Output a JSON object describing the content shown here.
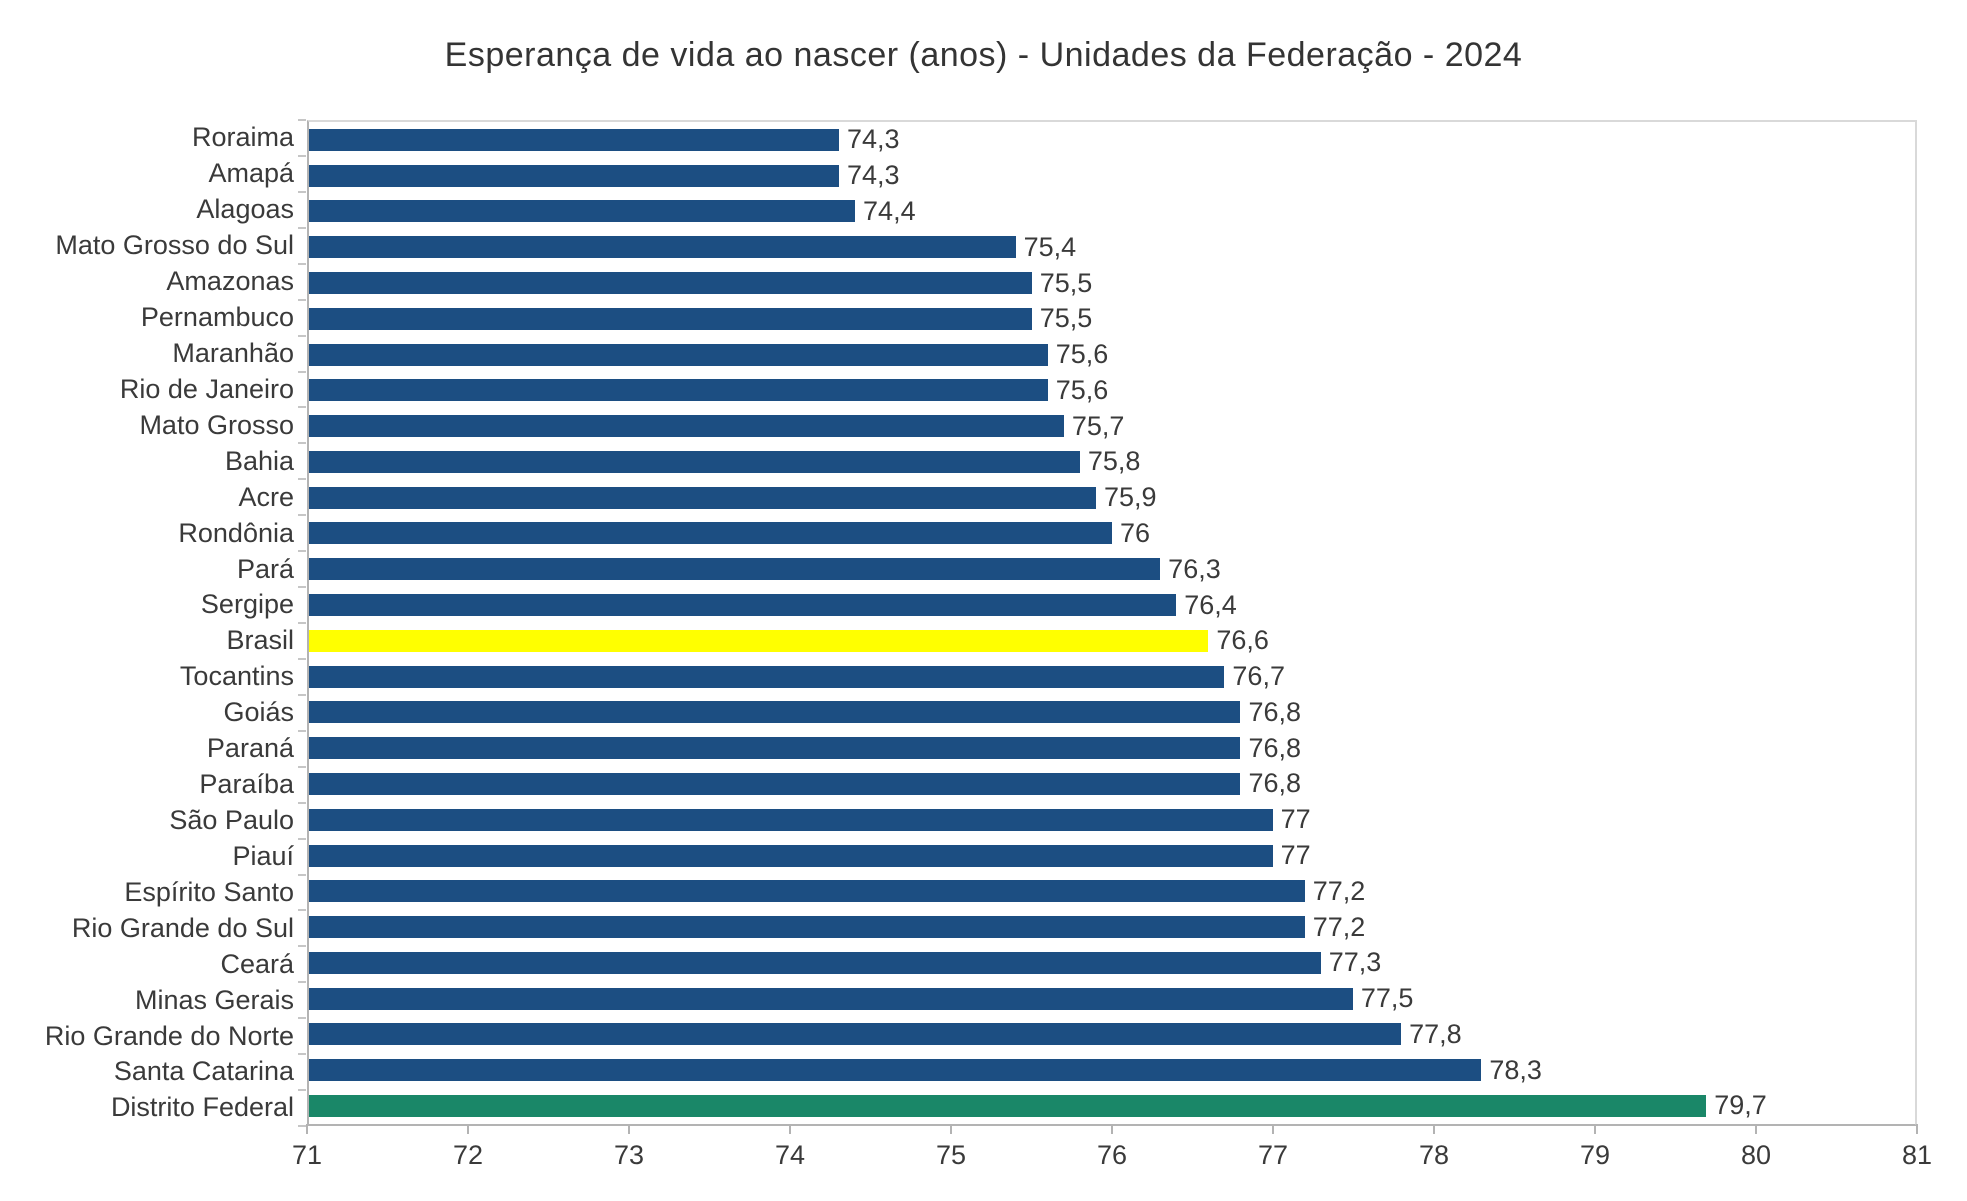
{
  "title": "Esperança de vida ao nascer (anos) - Unidades da Federação - 2024",
  "colors": {
    "bar_default": "#1C4E82",
    "bar_highlight_brasil": "#FFFF00",
    "bar_highlight_distrito_federal": "#1A8768",
    "axis_line": "#B3B3B3",
    "plot_border": "#D9D9D9",
    "text": "#3A3A3A"
  },
  "chart_data": {
    "type": "bar",
    "orientation": "horizontal",
    "title": "Esperança de vida ao nascer (anos) - Unidades da Federação - 2024",
    "xlabel": "",
    "ylabel": "",
    "xlim": [
      71,
      81
    ],
    "x_ticks": [
      71,
      72,
      73,
      74,
      75,
      76,
      77,
      78,
      79,
      80,
      81
    ],
    "grid": false,
    "legend": "none",
    "decimal_separator": ",",
    "categories": [
      "Roraima",
      "Amapá",
      "Alagoas",
      "Mato Grosso do Sul",
      "Amazonas",
      "Pernambuco",
      "Maranhão",
      "Rio de Janeiro",
      "Mato Grosso",
      "Bahia",
      "Acre",
      "Rondônia",
      "Pará",
      "Sergipe",
      "Brasil",
      "Tocantins",
      "Goiás",
      "Paraná",
      "Paraíba",
      "São Paulo",
      "Piauí",
      "Espírito Santo",
      "Rio Grande do Sul",
      "Ceará",
      "Minas Gerais",
      "Rio Grande do Norte",
      "Santa Catarina",
      "Distrito Federal"
    ],
    "values": [
      74.3,
      74.3,
      74.4,
      75.4,
      75.5,
      75.5,
      75.6,
      75.6,
      75.7,
      75.8,
      75.9,
      76,
      76.3,
      76.4,
      76.6,
      76.7,
      76.8,
      76.8,
      76.8,
      77,
      77,
      77.2,
      77.2,
      77.3,
      77.5,
      77.8,
      78.3,
      79.7
    ],
    "value_labels": [
      "74,3",
      "74,3",
      "74,4",
      "75,4",
      "75,5",
      "75,5",
      "75,6",
      "75,6",
      "75,7",
      "75,8",
      "75,9",
      "76",
      "76,3",
      "76,4",
      "76,6",
      "76,7",
      "76,8",
      "76,8",
      "76,8",
      "77",
      "77",
      "77,2",
      "77,2",
      "77,3",
      "77,5",
      "77,8",
      "78,3",
      "79,7"
    ],
    "bar_colors": [
      "#1C4E82",
      "#1C4E82",
      "#1C4E82",
      "#1C4E82",
      "#1C4E82",
      "#1C4E82",
      "#1C4E82",
      "#1C4E82",
      "#1C4E82",
      "#1C4E82",
      "#1C4E82",
      "#1C4E82",
      "#1C4E82",
      "#1C4E82",
      "#FFFF00",
      "#1C4E82",
      "#1C4E82",
      "#1C4E82",
      "#1C4E82",
      "#1C4E82",
      "#1C4E82",
      "#1C4E82",
      "#1C4E82",
      "#1C4E82",
      "#1C4E82",
      "#1C4E82",
      "#1C4E82",
      "#1A8768"
    ],
    "highlighted_categories": {
      "Brasil": "#FFFF00",
      "Distrito Federal": "#1A8768"
    }
  }
}
